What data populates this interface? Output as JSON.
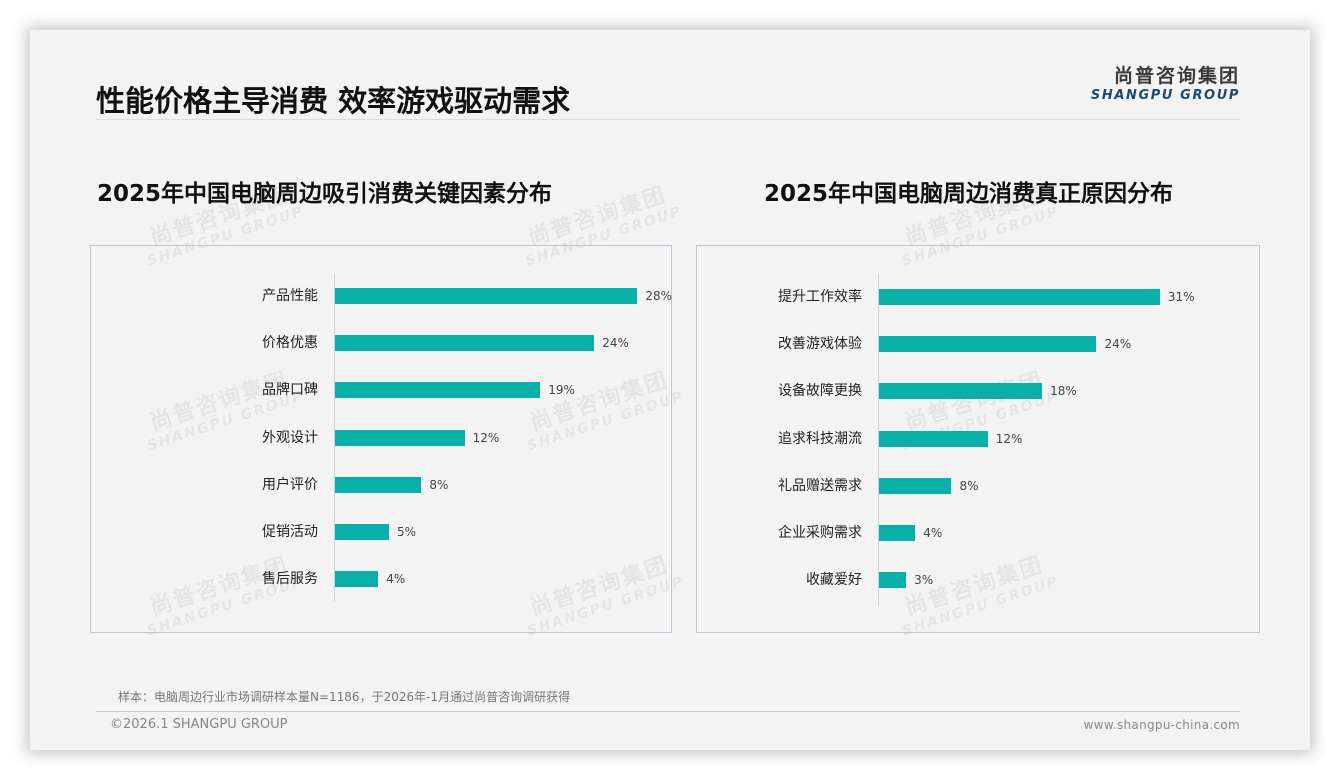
{
  "header": {
    "title": "性能价格主导消费 效率游戏驱动需求",
    "logo_cn": "尚普咨询集团",
    "logo_en": "SHANGPU GROUP"
  },
  "watermark": {
    "cn": "尚普咨询集团",
    "en": "SHANGPU GROUP"
  },
  "colors": {
    "bar": "#0aafa7",
    "title": "#111111",
    "logo_en": "#1e4a72",
    "panel_border": "#b9c7d6"
  },
  "chart_data": [
    {
      "type": "bar",
      "orientation": "horizontal",
      "title": "2025年中国电脑周边吸引消费关键因素分布",
      "categories": [
        "产品性能",
        "价格优惠",
        "品牌口碑",
        "外观设计",
        "用户评价",
        "促销活动",
        "售后服务"
      ],
      "values": [
        28,
        24,
        19,
        12,
        8,
        5,
        4
      ],
      "value_labels": [
        "28%",
        "24%",
        "19%",
        "12%",
        "8%",
        "5%",
        "4%"
      ],
      "unit": "%",
      "xlabel": "",
      "ylabel": "",
      "grid": false,
      "legend": false
    },
    {
      "type": "bar",
      "orientation": "horizontal",
      "title": "2025年中国电脑周边消费真正原因分布",
      "categories": [
        "提升工作效率",
        "改善游戏体验",
        "设备故障更换",
        "追求科技潮流",
        "礼品赠送需求",
        "企业采购需求",
        "收藏爱好"
      ],
      "values": [
        31,
        24,
        18,
        12,
        8,
        4,
        3
      ],
      "value_labels": [
        "31%",
        "24%",
        "18%",
        "12%",
        "8%",
        "4%",
        "3%"
      ],
      "unit": "%",
      "xlabel": "",
      "ylabel": "",
      "grid": false,
      "legend": false
    }
  ],
  "footer": {
    "note": "样本：电脑周边行业市场调研样本量N=1186，于2026年-1月通过尚普咨询调研获得",
    "copyright": "©2026.1 SHANGPU GROUP",
    "website": "www.shangpu-china.com"
  }
}
